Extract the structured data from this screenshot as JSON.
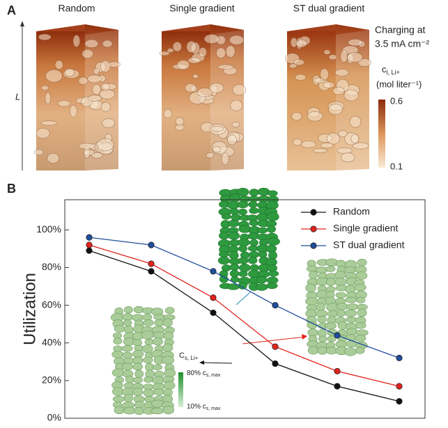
{
  "panel_a": {
    "label": "A",
    "columns": [
      "Random",
      "Single gradient",
      "ST dual gradient"
    ],
    "axis_label": "L",
    "condition": [
      "Charging at",
      "3.5 mA cm⁻²"
    ],
    "colorbar": {
      "title": [
        "c",
        "l, Li+",
        "(mol liter⁻¹)"
      ],
      "max": "0.6",
      "min": "0.1"
    }
  },
  "chart_data": {
    "type": "line",
    "panel_label": "B",
    "ylabel": "Utilization",
    "categories": [
      null,
      null,
      null,
      null,
      null,
      null
    ],
    "series": [
      {
        "name": "Random",
        "color": "#111111",
        "values": [
          89,
          78,
          56,
          29,
          17,
          9
        ]
      },
      {
        "name": "Single gradient",
        "color": "#e3221c",
        "values": [
          92,
          82,
          64,
          38,
          25,
          17
        ]
      },
      {
        "name": "ST dual gradient",
        "color": "#1f4e9c",
        "values": [
          96,
          92,
          78,
          60,
          44,
          32
        ]
      }
    ],
    "ylim": [
      0,
      116
    ],
    "yticks": [
      {
        "value": 0,
        "label": "0%"
      },
      {
        "value": 20,
        "label": "20%"
      },
      {
        "value": 40,
        "label": "40%"
      },
      {
        "value": 60,
        "label": "60%"
      },
      {
        "value": 80,
        "label": "80%"
      },
      {
        "value": 100,
        "label": "100%"
      }
    ],
    "legend": "top-right",
    "inset_labels": {
      "species": [
        "C",
        "s, Li+"
      ],
      "high": [
        "80% c",
        "s, max"
      ],
      "low": [
        "10% c",
        "s, max"
      ]
    }
  }
}
